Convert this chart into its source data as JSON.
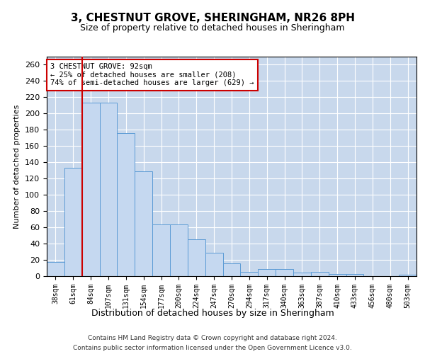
{
  "title": "3, CHESTNUT GROVE, SHERINGHAM, NR26 8PH",
  "subtitle": "Size of property relative to detached houses in Sheringham",
  "xlabel": "Distribution of detached houses by size in Sheringham",
  "ylabel": "Number of detached properties",
  "categories": [
    "38sqm",
    "61sqm",
    "84sqm",
    "107sqm",
    "131sqm",
    "154sqm",
    "177sqm",
    "200sqm",
    "224sqm",
    "247sqm",
    "270sqm",
    "294sqm",
    "317sqm",
    "340sqm",
    "363sqm",
    "387sqm",
    "410sqm",
    "433sqm",
    "456sqm",
    "480sqm",
    "503sqm"
  ],
  "values": [
    17,
    133,
    213,
    213,
    176,
    129,
    64,
    64,
    45,
    29,
    16,
    5,
    9,
    9,
    4,
    5,
    3,
    3,
    0,
    0,
    2
  ],
  "bar_color": "#c5d8f0",
  "bar_edge_color": "#5b9bd5",
  "background_color": "#ffffff",
  "grid_color": "#c8d8ec",
  "vline_x_index": 2,
  "vline_color": "#cc0000",
  "annotation_text": "3 CHESTNUT GROVE: 92sqm\n← 25% of detached houses are smaller (208)\n74% of semi-detached houses are larger (629) →",
  "annotation_box_color": "#ffffff",
  "annotation_box_edge": "#cc0000",
  "ylim": [
    0,
    270
  ],
  "yticks": [
    0,
    20,
    40,
    60,
    80,
    100,
    120,
    140,
    160,
    180,
    200,
    220,
    240,
    260
  ],
  "footer_line1": "Contains HM Land Registry data © Crown copyright and database right 2024.",
  "footer_line2": "Contains public sector information licensed under the Open Government Licence v3.0."
}
